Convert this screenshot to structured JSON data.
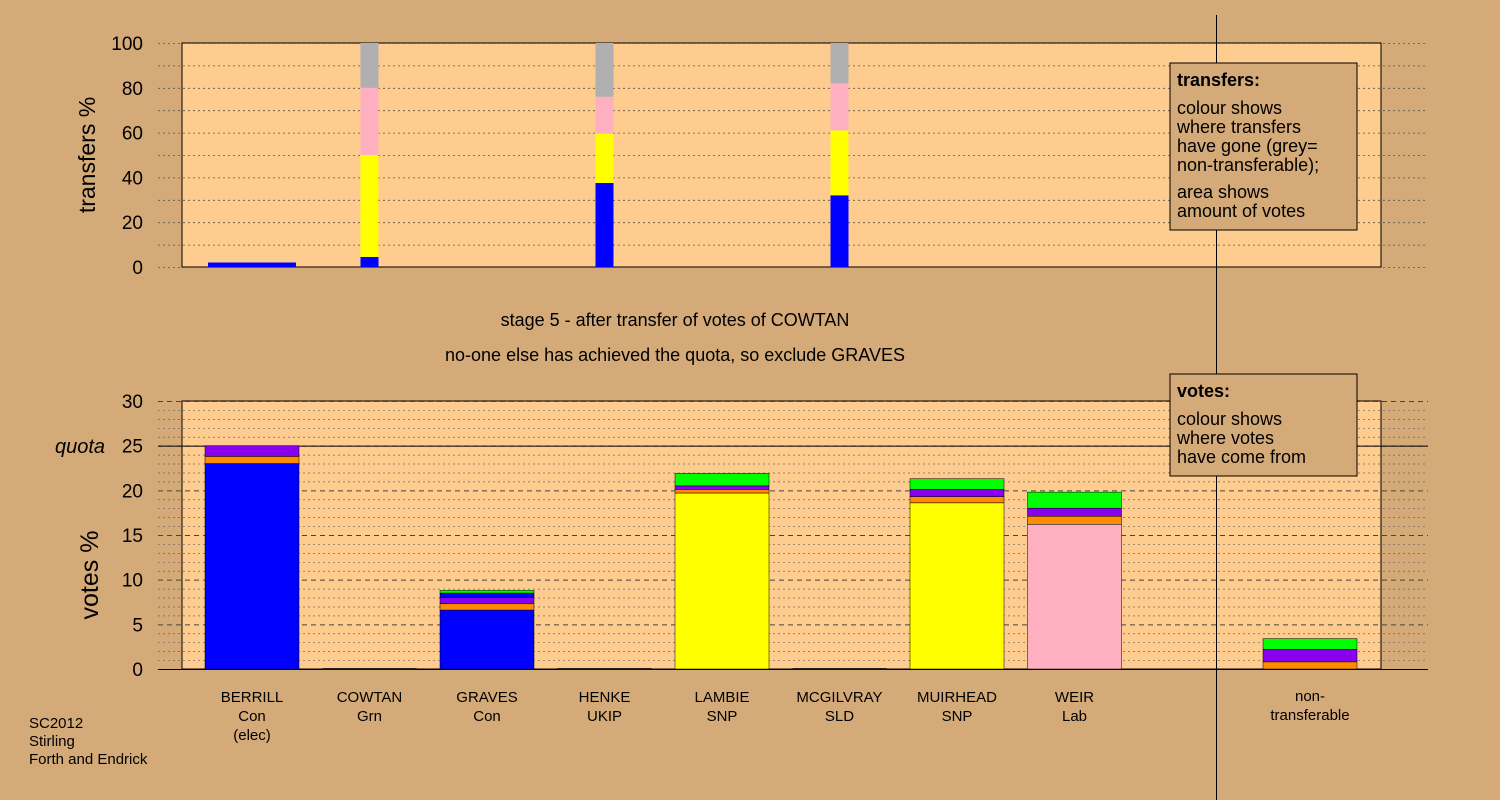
{
  "colors": {
    "background": "#d4aa78",
    "plot_bg": "#ffcc90",
    "Con": "#0000ff",
    "Grn": "#00ff00",
    "UKIP": "#8800ee",
    "SNP": "#ffff00",
    "SLD": "#ff8c00",
    "Lab": "#ffb0c0",
    "nontransferable": "#b0b0b0"
  },
  "captions": {
    "stage": "stage 5 - after transfer of votes of COWTAN",
    "note": "no-one else has achieved the quota, so exclude GRAVES",
    "footer": [
      "SC2012",
      "Stirling",
      "Forth and Endrick"
    ]
  },
  "legend_transfers": {
    "heading": "transfers:",
    "lines": [
      "colour shows",
      "where transfers",
      "have gone (grey=",
      "non-transferable);",
      "area shows",
      "amount of votes"
    ]
  },
  "legend_votes": {
    "heading": "votes:",
    "lines": [
      "colour shows",
      "where votes",
      "have come from"
    ]
  },
  "candidates": [
    {
      "name": "BERRILL",
      "party": "Con",
      "note": "(elec)"
    },
    {
      "name": "COWTAN",
      "party": "Grn",
      "note": ""
    },
    {
      "name": "GRAVES",
      "party": "Con",
      "note": ""
    },
    {
      "name": "HENKE",
      "party": "UKIP",
      "note": ""
    },
    {
      "name": "LAMBIE",
      "party": "SNP",
      "note": ""
    },
    {
      "name": "MCGILVRAY",
      "party": "SLD",
      "note": ""
    },
    {
      "name": "MUIRHEAD",
      "party": "SNP",
      "note": ""
    },
    {
      "name": "WEIR",
      "party": "Lab",
      "note": ""
    }
  ],
  "nontransferable_label": [
    "non-",
    "transferable"
  ],
  "chart_data": [
    {
      "type": "bar",
      "stacked": true,
      "ylabel": "transfers %",
      "ylim": [
        0,
        100
      ],
      "yticks": [
        0,
        20,
        40,
        60,
        80,
        100
      ],
      "bars": [
        {
          "candidate": "BERRILL",
          "wide": true,
          "segments": [
            {
              "party": "Con",
              "value": 2
            }
          ]
        },
        {
          "candidate": "COWTAN",
          "wide": false,
          "segments": [
            {
              "party": "Con",
              "value": 4.5
            },
            {
              "party": "SNP",
              "value": 45.5
            },
            {
              "party": "Lab",
              "value": 30
            },
            {
              "party": "nontransferable",
              "value": 20
            }
          ]
        },
        {
          "candidate": "HENKE",
          "wide": false,
          "segments": [
            {
              "party": "Con",
              "value": 37.5
            },
            {
              "party": "SNP",
              "value": 22
            },
            {
              "party": "Lab",
              "value": 16.5
            },
            {
              "party": "nontransferable",
              "value": 24
            }
          ]
        },
        {
          "candidate": "MCGILVRAY",
          "wide": false,
          "segments": [
            {
              "party": "Con",
              "value": 32
            },
            {
              "party": "SNP",
              "value": 29
            },
            {
              "party": "Lab",
              "value": 21
            },
            {
              "party": "nontransferable",
              "value": 18
            }
          ]
        }
      ]
    },
    {
      "type": "bar",
      "stacked": true,
      "ylabel": "votes %",
      "ylim": [
        0,
        30
      ],
      "yticks": [
        0,
        5,
        10,
        15,
        20,
        25,
        30
      ],
      "quota": 25,
      "quota_label": "quota",
      "bars": [
        {
          "candidate": "BERRILL",
          "segments": [
            {
              "party": "Con",
              "value": 23
            },
            {
              "party": "SLD",
              "value": 0.8
            },
            {
              "party": "UKIP",
              "value": 1.2
            }
          ]
        },
        {
          "candidate": "COWTAN",
          "segments": []
        },
        {
          "candidate": "GRAVES",
          "segments": [
            {
              "party": "Con",
              "value": 6.6
            },
            {
              "party": "SLD",
              "value": 0.7
            },
            {
              "party": "UKIP",
              "value": 0.7
            },
            {
              "party": "Con",
              "value": 0.5
            },
            {
              "party": "Grn",
              "value": 0.3
            }
          ]
        },
        {
          "candidate": "HENKE",
          "segments": []
        },
        {
          "candidate": "LAMBIE",
          "segments": [
            {
              "party": "SNP",
              "value": 19.7
            },
            {
              "party": "SLD",
              "value": 0.4
            },
            {
              "party": "UKIP",
              "value": 0.4
            },
            {
              "party": "Grn",
              "value": 1.4
            }
          ]
        },
        {
          "candidate": "MCGILVRAY",
          "segments": []
        },
        {
          "candidate": "MUIRHEAD",
          "segments": [
            {
              "party": "SNP",
              "value": 18.6
            },
            {
              "party": "SLD",
              "value": 0.7
            },
            {
              "party": "UKIP",
              "value": 0.8
            },
            {
              "party": "Grn",
              "value": 1.2
            }
          ]
        },
        {
          "candidate": "WEIR",
          "segments": [
            {
              "party": "Lab",
              "value": 16.2
            },
            {
              "party": "SLD",
              "value": 0.9
            },
            {
              "party": "UKIP",
              "value": 0.9
            },
            {
              "party": "Grn",
              "value": 1.8
            }
          ]
        },
        {
          "candidate": "non-transferable",
          "segments": [
            {
              "party": "SLD",
              "value": 0.8
            },
            {
              "party": "UKIP",
              "value": 1.4
            },
            {
              "party": "Grn",
              "value": 1.2
            }
          ]
        }
      ]
    }
  ]
}
